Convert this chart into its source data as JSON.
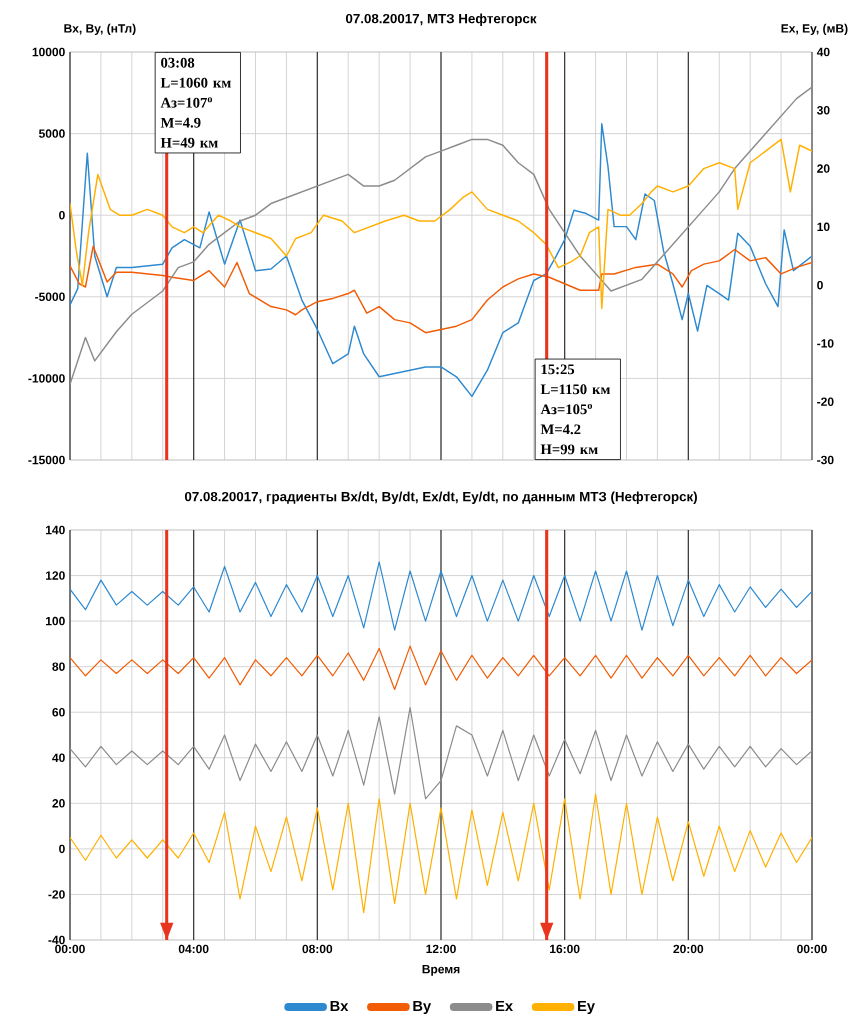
{
  "chart_data": [
    {
      "type": "line",
      "title": "07.08.20017, МТЗ Нефтегорск",
      "ylabel": "Bx, By, (нТл)",
      "y2label": "Ex, Ey, (мВ)",
      "xlim": [
        0,
        24
      ],
      "xticks": [
        0,
        {
          "value": 1,
          "label": null
        },
        {
          "value": 2,
          "label": null
        },
        {
          "value": 3,
          "label": null
        },
        4,
        {
          "value": 5,
          "label": null
        },
        {
          "value": 6,
          "label": null
        },
        {
          "value": 7,
          "label": null
        },
        8,
        {
          "value": 9,
          "label": null
        },
        {
          "value": 10,
          "label": null
        },
        {
          "value": 11,
          "label": null
        },
        12,
        {
          "value": 13,
          "label": null
        },
        {
          "value": 14,
          "label": null
        },
        {
          "value": 15,
          "label": null
        },
        16,
        {
          "value": 17,
          "label": null
        },
        {
          "value": 18,
          "label": null
        },
        {
          "value": 19,
          "label": null
        },
        20,
        {
          "value": 21,
          "label": null
        },
        {
          "value": 22,
          "label": null
        },
        {
          "value": 23,
          "label": null
        },
        24
      ],
      "ylim": [
        -15000,
        10000
      ],
      "yticks": [
        -15000,
        -10000,
        -5000,
        0,
        5000,
        10000
      ],
      "y2lim": [
        -30,
        40
      ],
      "y2ticks": [
        -30,
        -20,
        -10,
        0,
        10,
        20,
        30,
        40
      ],
      "grid": true,
      "tick_labels": "y",
      "ref_lines": [
        {
          "axis": "x",
          "value": 3.13,
          "color": "#e8351f",
          "label": "03:08 L=1060 км Аз=107$^{o}$ M=4.9 H=49 км"
        },
        {
          "axis": "x",
          "value": 15.42,
          "color": "#e8351f",
          "label": "15:25 L=1150 км Аз=105$^{o}$ M=4.2 H=99 км"
        }
      ],
      "series": [
        {
          "color": "#2e8ad0",
          "axis": "y",
          "x": [
            0,
            0.25,
            0.56,
            0.8,
            1.2,
            1.5,
            2,
            3,
            3.3,
            3.7,
            4.2,
            4.5,
            5,
            5.5,
            6,
            6.5,
            7,
            7.5,
            8,
            8.5,
            9,
            9.2,
            9.5,
            10,
            10.5,
            11,
            11.5,
            12,
            12.5,
            13,
            13.5,
            14,
            14.5,
            15,
            15.4,
            15.7,
            16,
            16.3,
            16.7,
            17.1,
            17.2,
            17.4,
            17.6,
            18,
            18.3,
            18.6,
            18.9,
            19.2,
            19.5,
            19.8,
            20,
            20.3,
            20.6,
            21,
            21.3,
            21.6,
            22,
            22.5,
            22.9,
            23.1,
            23.4,
            24
          ],
          "values": [
            -5500,
            -4500,
            3800,
            -2500,
            -5000,
            -3200,
            -3200,
            -3000,
            -2000,
            -1500,
            -2000,
            200,
            -3000,
            -300,
            -3400,
            -3300,
            -2500,
            -5200,
            -7000,
            -9100,
            -8500,
            -6800,
            -8500,
            -9900,
            -9700,
            -9500,
            -9300,
            -9300,
            -9900,
            -11100,
            -9500,
            -7200,
            -6600,
            -4000,
            -3600,
            -2600,
            -1500,
            300,
            100,
            -300,
            5600,
            3000,
            -700,
            -700,
            -1500,
            1300,
            900,
            -2200,
            -4200,
            -6400,
            -4800,
            -7100,
            -4300,
            -4800,
            -5200,
            -1100,
            -1900,
            -4200,
            -5600,
            -900,
            -3400,
            -2500
          ]
        },
        {
          "color": "#f25c05",
          "axis": "y",
          "x": [
            0,
            0.3,
            0.5,
            0.75,
            1.2,
            1.5,
            2,
            3,
            3.3,
            4,
            4.5,
            5,
            5.4,
            5.8,
            6.5,
            7,
            7.3,
            7.5,
            8,
            8.5,
            9,
            9.2,
            9.6,
            10,
            10.5,
            11,
            11.5,
            12,
            12.5,
            13,
            13.5,
            14,
            14.5,
            15,
            15.5,
            16,
            16.5,
            17.1,
            17.2,
            17.6,
            18.3,
            19,
            19.5,
            19.8,
            20.1,
            20.5,
            21,
            21.5,
            22,
            22.5,
            23,
            23.5,
            24
          ],
          "values": [
            -3100,
            -4200,
            -4400,
            -1900,
            -4100,
            -3500,
            -3500,
            -3700,
            -3800,
            -4000,
            -3400,
            -4400,
            -2900,
            -4800,
            -5600,
            -5800,
            -6100,
            -5800,
            -5300,
            -5100,
            -4800,
            -4600,
            -6000,
            -5600,
            -6400,
            -6600,
            -7200,
            -7000,
            -6800,
            -6400,
            -5200,
            -4400,
            -3900,
            -3600,
            -3800,
            -4200,
            -4600,
            -4600,
            -3600,
            -3600,
            -3200,
            -3000,
            -3600,
            -4400,
            -3400,
            -3000,
            -2800,
            -2100,
            -2800,
            -2600,
            -3600,
            -3200,
            -2900
          ]
        },
        {
          "color": "#8c8c8c",
          "axis": "y2",
          "x": [
            0,
            0.5,
            0.8,
            1.5,
            2,
            3,
            3.5,
            4,
            4.5,
            5,
            5.5,
            6,
            6.5,
            7,
            7.5,
            8,
            8.5,
            9,
            9.5,
            10,
            10.5,
            11,
            11.5,
            12,
            12.5,
            13,
            13.5,
            14,
            14.5,
            15,
            15.5,
            16,
            16.5,
            17,
            17.5,
            18,
            18.5,
            19,
            19.5,
            20,
            20.5,
            21,
            21.5,
            22,
            22.5,
            23,
            23.5,
            24
          ],
          "values": [
            -17,
            -9,
            -13,
            -8,
            -5,
            -1,
            3,
            4,
            7,
            9,
            11,
            12,
            14,
            15,
            16,
            17,
            18,
            19,
            17,
            17,
            18,
            20,
            22,
            23,
            24,
            25,
            25,
            24,
            21,
            19,
            13,
            9,
            5,
            2,
            -1,
            0,
            1,
            4,
            7,
            10,
            13,
            16,
            20,
            23,
            26,
            29,
            32,
            34
          ]
        },
        {
          "color": "#ffb000",
          "axis": "y2",
          "x": [
            0,
            0.2,
            0.4,
            0.6,
            0.9,
            1.3,
            1.6,
            2,
            2.5,
            3,
            3.3,
            3.7,
            4,
            4.3,
            4.8,
            5.2,
            5.5,
            6,
            6.5,
            7,
            7.3,
            7.8,
            8.2,
            8.8,
            9.2,
            9.7,
            10.2,
            10.8,
            11.3,
            11.8,
            12.3,
            12.7,
            13,
            13.5,
            14,
            14.5,
            15,
            15.4,
            15.8,
            16.2,
            16.5,
            16.8,
            17.1,
            17.2,
            17.4,
            17.8,
            18.1,
            18.5,
            18.8,
            19,
            19.5,
            20,
            20.5,
            21,
            21.5,
            21.6,
            22,
            22.5,
            23,
            23.3,
            23.6,
            24
          ],
          "values": [
            14,
            6,
            0,
            9,
            19,
            13,
            12,
            12,
            13,
            12,
            10,
            9,
            10,
            9,
            12,
            11,
            10,
            9,
            8,
            5,
            8,
            9,
            12,
            11,
            9,
            10,
            11,
            12,
            11,
            11,
            13,
            15,
            16,
            13,
            12,
            11,
            9,
            7,
            3,
            4,
            5,
            9,
            10,
            -4,
            13,
            12,
            12,
            14,
            16,
            17,
            16,
            17,
            20,
            21,
            20,
            13,
            21,
            23,
            25,
            16,
            24,
            23
          ]
        }
      ]
    },
    {
      "type": "line",
      "title": "07.08.20017, градиенты Bx/dt, By/dt, Ex/dt, Ey/dt, по данным МТЗ (Нефтегорск)",
      "xlabel": "Время",
      "xlim": [
        0,
        24
      ],
      "xticks": [
        {
          "value": 0,
          "label": "00:00"
        },
        {
          "value": 1,
          "label": null
        },
        {
          "value": 2,
          "label": null
        },
        {
          "value": 3,
          "label": null
        },
        {
          "value": 4,
          "label": "04:00"
        },
        {
          "value": 5,
          "label": null
        },
        {
          "value": 6,
          "label": null
        },
        {
          "value": 7,
          "label": null
        },
        {
          "value": 8,
          "label": "08:00"
        },
        {
          "value": 9,
          "label": null
        },
        {
          "value": 10,
          "label": null
        },
        {
          "value": 11,
          "label": null
        },
        {
          "value": 12,
          "label": "12:00"
        },
        {
          "value": 13,
          "label": null
        },
        {
          "value": 14,
          "label": null
        },
        {
          "value": 15,
          "label": null
        },
        {
          "value": 16,
          "label": "16:00"
        },
        {
          "value": 17,
          "label": null
        },
        {
          "value": 18,
          "label": null
        },
        {
          "value": 19,
          "label": null
        },
        {
          "value": 20,
          "label": "20:00"
        },
        {
          "value": 21,
          "label": null
        },
        {
          "value": 22,
          "label": null
        },
        {
          "value": 23,
          "label": null
        },
        {
          "value": 24,
          "label": "00:00"
        }
      ],
      "ylim": [
        -40,
        140
      ],
      "yticks": [
        -40,
        -20,
        0,
        20,
        40,
        60,
        80,
        100,
        120,
        140
      ],
      "grid": true,
      "legend": "bottom",
      "ref_lines": [
        {
          "axis": "x",
          "value": 3.13,
          "color": "#e8351f"
        },
        {
          "axis": "x",
          "value": 15.42,
          "color": "#e8351f"
        }
      ],
      "x": [
        0,
        0.5,
        1,
        1.5,
        2,
        2.5,
        3,
        3.5,
        4,
        4.5,
        5,
        5.5,
        6,
        6.5,
        7,
        7.5,
        8,
        8.5,
        9,
        9.5,
        10,
        10.5,
        11,
        11.5,
        12,
        12.5,
        13,
        13.5,
        14,
        14.5,
        15,
        15.5,
        16,
        16.5,
        17,
        17.5,
        18,
        18.5,
        19,
        19.5,
        20,
        20.5,
        21,
        21.5,
        22,
        22.5,
        23,
        23.5,
        24
      ],
      "series": [
        {
          "name": "Bx",
          "color": "#2e8ad0",
          "values": [
            114,
            105,
            118,
            107,
            113,
            107,
            113,
            107,
            115,
            104,
            124,
            104,
            117,
            102,
            116,
            104,
            120,
            102,
            120,
            97,
            126,
            96,
            122,
            100,
            122,
            102,
            120,
            100,
            118,
            100,
            120,
            102,
            120,
            100,
            122,
            100,
            122,
            96,
            120,
            98,
            118,
            102,
            116,
            104,
            115,
            106,
            114,
            106,
            113
          ]
        },
        {
          "name": "By",
          "color": "#f25c05",
          "values": [
            84,
            76,
            83,
            77,
            83,
            77,
            83,
            77,
            84,
            75,
            84,
            72,
            83,
            76,
            84,
            76,
            85,
            76,
            86,
            74,
            88,
            70,
            89,
            72,
            87,
            74,
            85,
            75,
            84,
            76,
            85,
            76,
            84,
            76,
            85,
            75,
            85,
            75,
            84,
            76,
            85,
            76,
            84,
            76,
            85,
            76,
            84,
            77,
            83
          ]
        },
        {
          "name": "Ex",
          "color": "#8c8c8c",
          "values": [
            44,
            36,
            45,
            37,
            43,
            37,
            43,
            37,
            45,
            35,
            50,
            30,
            46,
            34,
            47,
            34,
            50,
            32,
            52,
            28,
            58,
            24,
            62,
            22,
            30,
            54,
            50,
            32,
            52,
            30,
            50,
            32,
            48,
            33,
            52,
            30,
            50,
            32,
            47,
            34,
            46,
            35,
            45,
            36,
            45,
            36,
            44,
            37,
            43
          ]
        },
        {
          "name": "Ey",
          "color": "#ffb000",
          "values": [
            5,
            -5,
            6,
            -4,
            4,
            -4,
            4,
            -4,
            7,
            -6,
            16,
            -22,
            10,
            -10,
            14,
            -14,
            18,
            -18,
            20,
            -28,
            22,
            -24,
            20,
            -20,
            18,
            -22,
            17,
            -16,
            16,
            -14,
            20,
            -18,
            22,
            -22,
            24,
            -20,
            20,
            -20,
            14,
            -14,
            12,
            -12,
            10,
            -10,
            8,
            -8,
            7,
            -6,
            5
          ]
        }
      ]
    }
  ]
}
